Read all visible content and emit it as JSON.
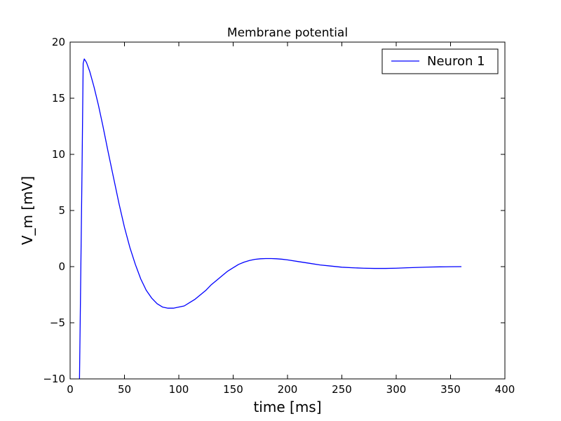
{
  "chart_data": {
    "type": "line",
    "title": "Membrane potential",
    "xlabel": "time [ms]",
    "ylabel": "V_m [mV]",
    "xlim": [
      0,
      400
    ],
    "ylim": [
      -10,
      20
    ],
    "xticks": [
      0,
      50,
      100,
      150,
      200,
      250,
      300,
      350,
      400
    ],
    "yticks": [
      -10,
      -5,
      0,
      5,
      10,
      15,
      20
    ],
    "xtick_labels": [
      "0",
      "50",
      "100",
      "150",
      "200",
      "250",
      "300",
      "350",
      "400"
    ],
    "ytick_labels": [
      "−10",
      "−5",
      "0",
      "5",
      "10",
      "15",
      "20"
    ],
    "grid": false,
    "legend": {
      "placement": "top-right",
      "entries": [
        "Neuron 1"
      ]
    },
    "series": [
      {
        "name": "Neuron 1",
        "color": "#0000ff",
        "x": [
          8.6,
          11,
          12,
          13,
          15,
          18,
          22,
          26,
          30,
          35,
          40,
          45,
          50,
          55,
          60,
          65,
          70,
          75,
          80,
          85,
          90,
          95,
          100,
          105,
          110,
          115,
          120,
          125,
          130,
          135,
          140,
          145,
          150,
          155,
          160,
          165,
          170,
          175,
          180,
          185,
          190,
          195,
          200,
          210,
          220,
          230,
          240,
          250,
          260,
          270,
          280,
          290,
          300,
          310,
          320,
          330,
          340,
          350,
          360
        ],
        "y": [
          -10.2,
          9.0,
          18.1,
          18.5,
          18.2,
          17.4,
          16.0,
          14.4,
          12.6,
          10.2,
          7.9,
          5.6,
          3.5,
          1.7,
          0.2,
          -1.1,
          -2.1,
          -2.8,
          -3.3,
          -3.6,
          -3.7,
          -3.7,
          -3.6,
          -3.5,
          -3.2,
          -2.9,
          -2.5,
          -2.1,
          -1.6,
          -1.2,
          -0.8,
          -0.4,
          -0.1,
          0.2,
          0.4,
          0.55,
          0.65,
          0.7,
          0.72,
          0.72,
          0.7,
          0.66,
          0.6,
          0.45,
          0.3,
          0.15,
          0.05,
          -0.05,
          -0.1,
          -0.14,
          -0.16,
          -0.16,
          -0.14,
          -0.1,
          -0.07,
          -0.04,
          -0.02,
          -0.01,
          0.0
        ]
      }
    ]
  }
}
